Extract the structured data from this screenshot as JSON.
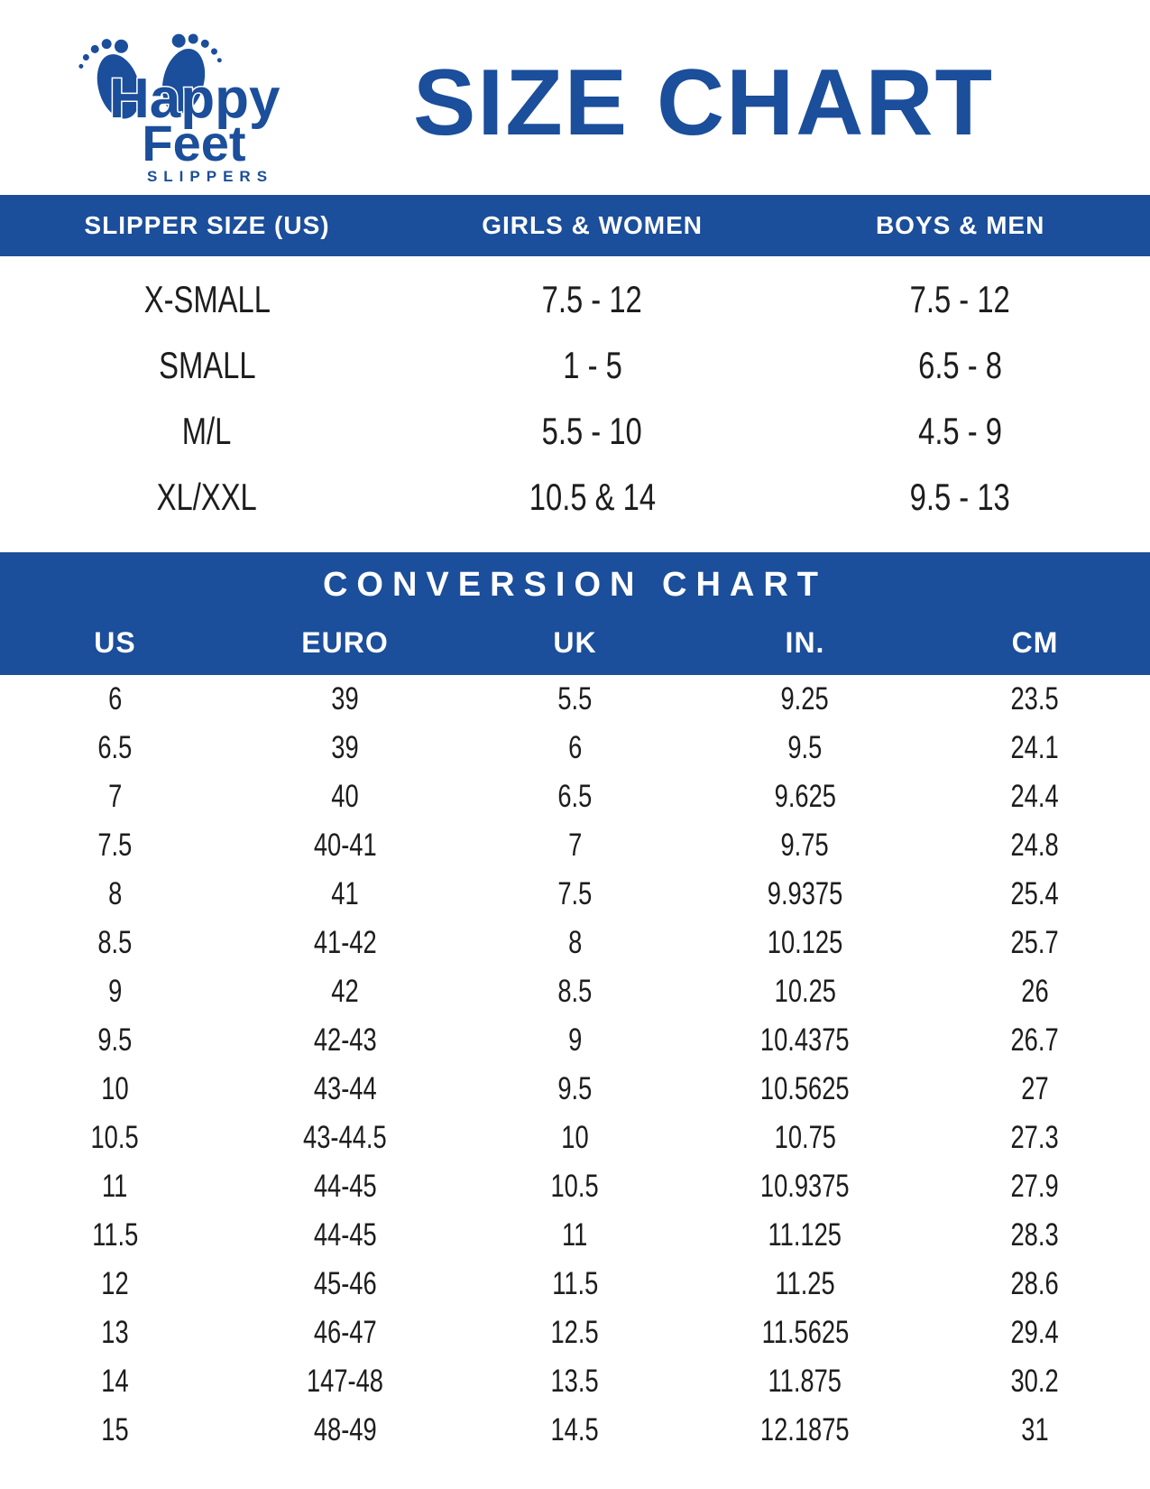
{
  "logo": {
    "word1": "Happy",
    "word2": "Feet",
    "word3": "SLIPPERS"
  },
  "title": "SIZE CHART",
  "size_table": {
    "headers": [
      "SLIPPER SIZE (US)",
      "GIRLS & WOMEN",
      "BOYS & MEN"
    ],
    "rows": [
      [
        "X-SMALL",
        "7.5 - 12",
        "7.5 - 12"
      ],
      [
        "SMALL",
        "1 - 5",
        "6.5 - 8"
      ],
      [
        "M/L",
        "5.5 - 10",
        "4.5 - 9"
      ],
      [
        "XL/XXL",
        "10.5 & 14",
        "9.5 - 13"
      ]
    ]
  },
  "conversion_chart": {
    "title": "CONVERSION CHART",
    "headers": [
      "US",
      "EURO",
      "UK",
      "IN.",
      "CM"
    ],
    "rows": [
      [
        "6",
        "39",
        "5.5",
        "9.25",
        "23.5"
      ],
      [
        "6.5",
        "39",
        "6",
        "9.5",
        "24.1"
      ],
      [
        "7",
        "40",
        "6.5",
        "9.625",
        "24.4"
      ],
      [
        "7.5",
        "40-41",
        "7",
        "9.75",
        "24.8"
      ],
      [
        "8",
        "41",
        "7.5",
        "9.9375",
        "25.4"
      ],
      [
        "8.5",
        "41-42",
        "8",
        "10.125",
        "25.7"
      ],
      [
        "9",
        "42",
        "8.5",
        "10.25",
        "26"
      ],
      [
        "9.5",
        "42-43",
        "9",
        "10.4375",
        "26.7"
      ],
      [
        "10",
        "43-44",
        "9.5",
        "10.5625",
        "27"
      ],
      [
        "10.5",
        "43-44.5",
        "10",
        "10.75",
        "27.3"
      ],
      [
        "11",
        "44-45",
        "10.5",
        "10.9375",
        "27.9"
      ],
      [
        "11.5",
        "44-45",
        "11",
        "11.125",
        "28.3"
      ],
      [
        "12",
        "45-46",
        "11.5",
        "11.25",
        "28.6"
      ],
      [
        "13",
        "46-47",
        "12.5",
        "11.5625",
        "29.4"
      ],
      [
        "14",
        "147-48",
        "13.5",
        "11.875",
        "30.2"
      ],
      [
        "15",
        "48-49",
        "14.5",
        "12.1875",
        "31"
      ]
    ]
  },
  "colors": {
    "accent": "#1b4e9b",
    "text": "#1d1d1d",
    "header_text": "#ffffff"
  }
}
